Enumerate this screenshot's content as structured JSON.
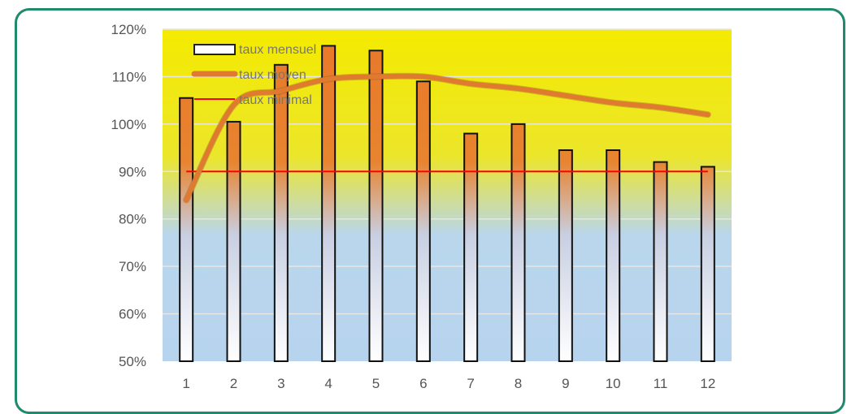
{
  "chart_data": {
    "type": "bar",
    "categories": [
      "1",
      "2",
      "3",
      "4",
      "5",
      "6",
      "7",
      "8",
      "9",
      "10",
      "11",
      "12"
    ],
    "series": [
      {
        "name": "taux mensuel",
        "type": "bar",
        "values": [
          105.5,
          100.5,
          112.5,
          116.5,
          115.5,
          109,
          98,
          100,
          94.5,
          94.5,
          92,
          91
        ]
      },
      {
        "name": "taux moyen",
        "type": "line",
        "values": [
          84,
          104,
          107,
          109.5,
          110,
          110,
          108.5,
          107.5,
          106,
          104.5,
          103.5,
          102
        ]
      },
      {
        "name": "taux minimal",
        "type": "line",
        "values": [
          90,
          90,
          90,
          90,
          90,
          90,
          90,
          90,
          90,
          90,
          90,
          90
        ]
      }
    ],
    "yticks": [
      "50%",
      "60%",
      "70%",
      "80%",
      "90%",
      "100%",
      "110%",
      "120%"
    ],
    "ylim": [
      50,
      120
    ],
    "grid": true,
    "legend": "top-left",
    "colors": {
      "bar_top": "#e87c2a",
      "bar_bottom": "#ffffff",
      "mean_line": "#e07a2e",
      "min_line": "#ff0000",
      "bg_top": "#f2e800",
      "bg_bottom": "#b7d4ee",
      "border": "#1f8a6e"
    }
  }
}
